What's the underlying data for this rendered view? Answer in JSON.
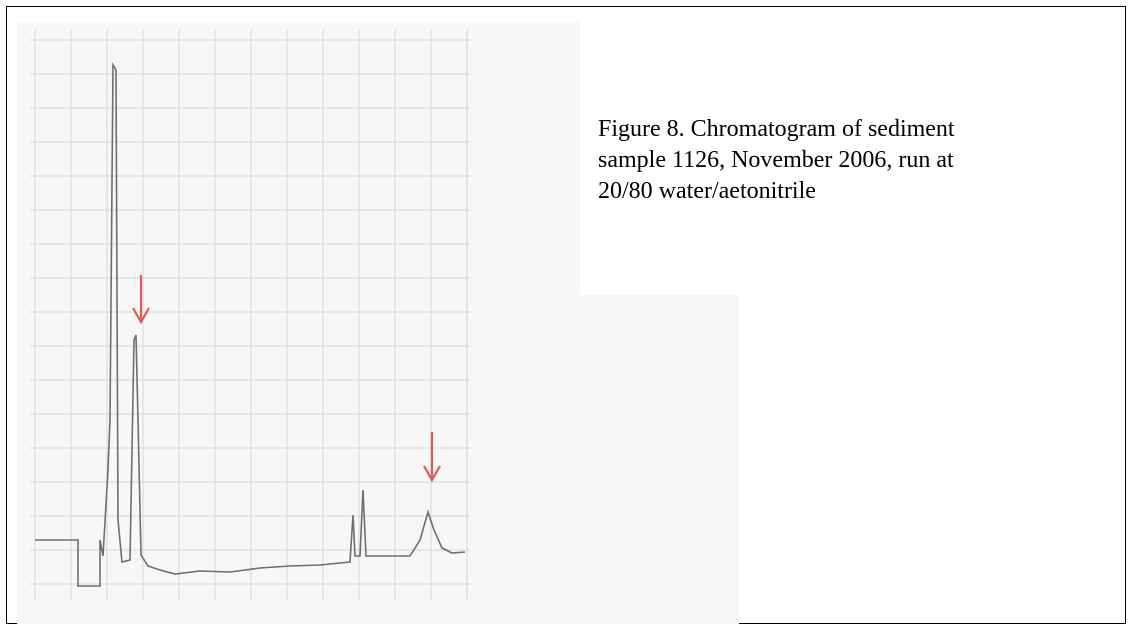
{
  "figure": {
    "caption": {
      "lines": [
        "Figure 8. Chromatogram of sediment",
        "sample 1126, November 2006, run at",
        "20/80 water/aetonitrile"
      ]
    }
  }
}
